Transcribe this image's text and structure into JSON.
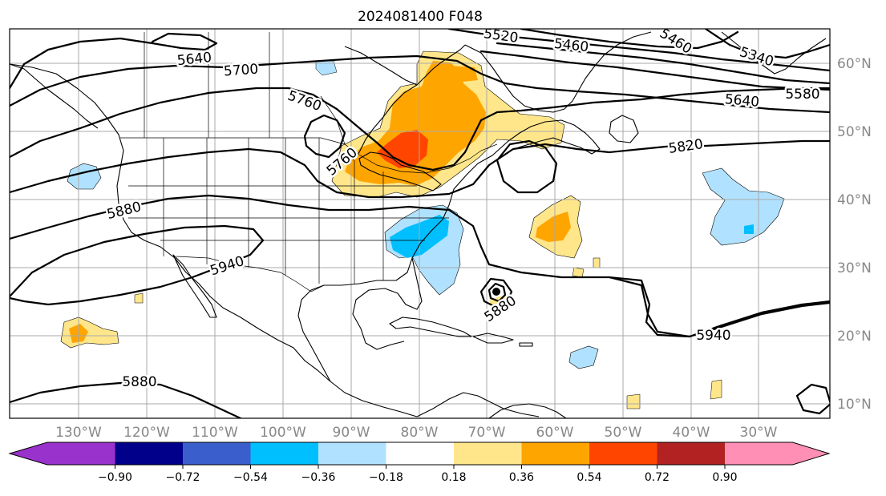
{
  "title": "2024081400 F048",
  "map": {
    "lon_ticks": [
      "130°W",
      "120°W",
      "110°W",
      "100°W",
      "90°W",
      "80°W",
      "70°W",
      "60°W",
      "50°W",
      "40°W",
      "30°W"
    ],
    "lat_ticks": [
      "60°N",
      "50°N",
      "40°N",
      "30°N",
      "20°N",
      "10°N"
    ],
    "contour_labels": [
      "5640",
      "5700",
      "5760",
      "5760",
      "5880",
      "5940",
      "5880",
      "5880",
      "5940",
      "5820",
      "5640",
      "5580",
      "5340",
      "5460",
      "5460",
      "5520"
    ]
  },
  "colorbar": {
    "ticks": [
      "−0.90",
      "−0.72",
      "−0.54",
      "−0.36",
      "−0.18",
      "0.18",
      "0.36",
      "0.54",
      "0.72",
      "0.90"
    ],
    "colors": [
      "#9932cc",
      "#00008b",
      "#3a5fcd",
      "#00bfff",
      "#b0e2ff",
      "#ffffff",
      "#ffe68a",
      "#ffa500",
      "#ff4500",
      "#b22222",
      "#ff8fb4"
    ]
  }
}
